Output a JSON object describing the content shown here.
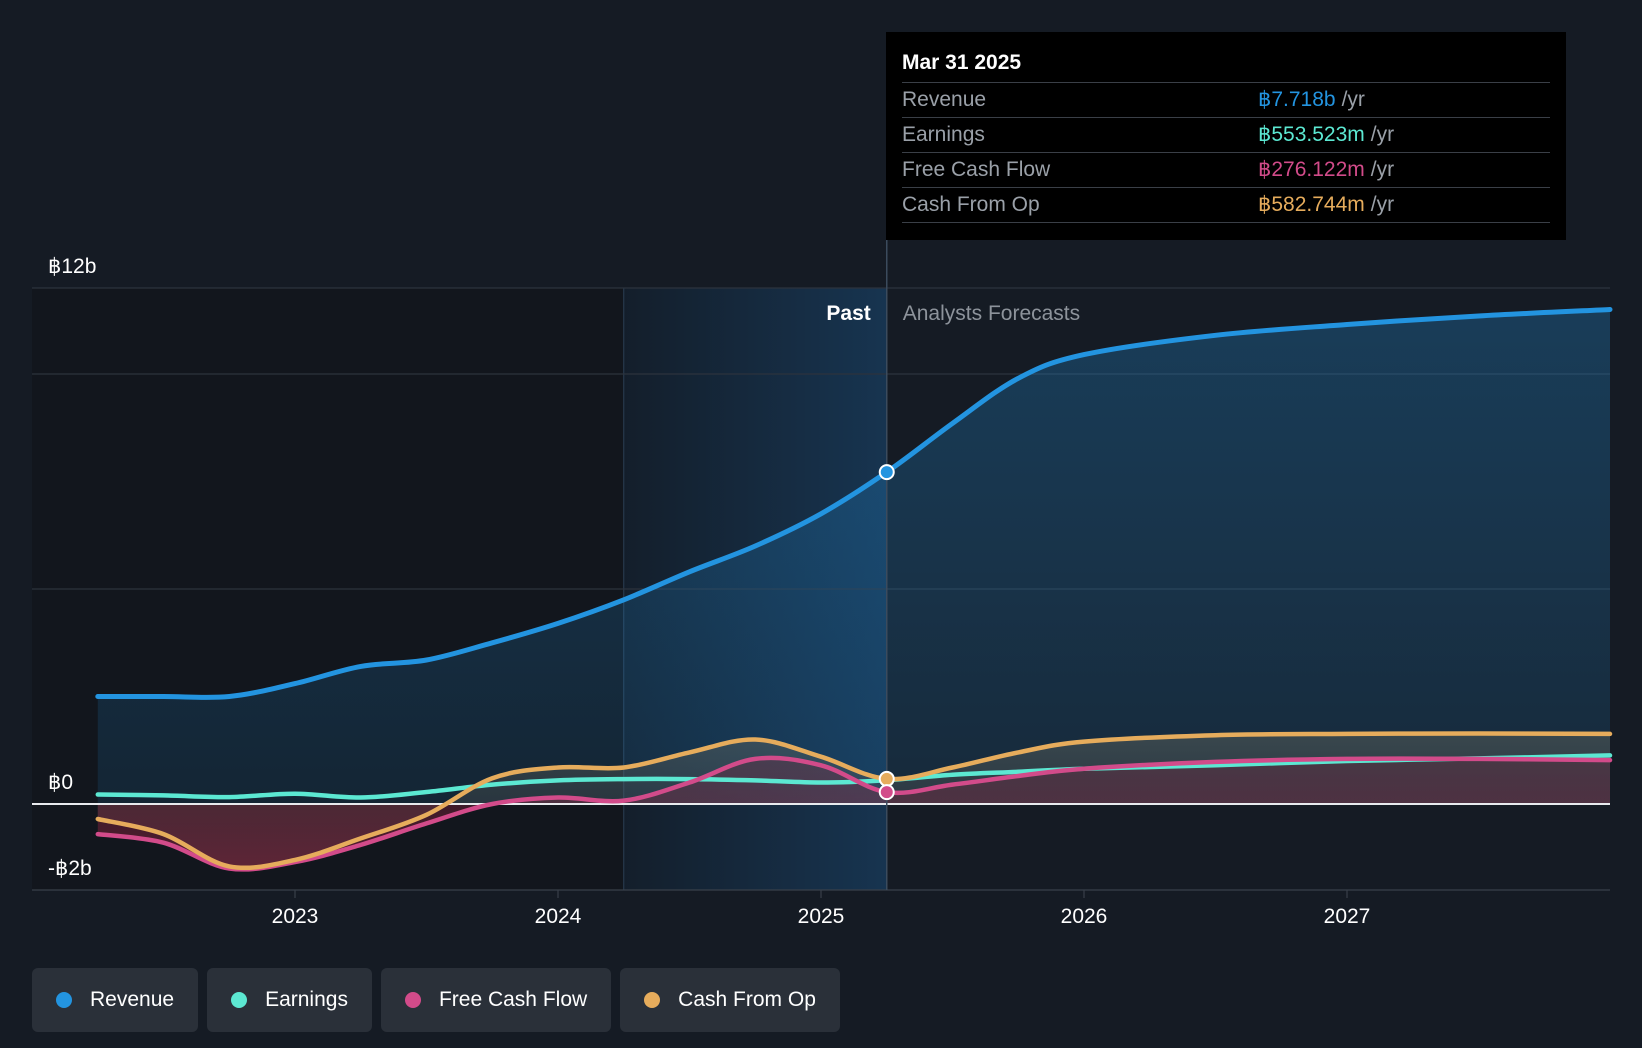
{
  "colors": {
    "revenue": "#2394e0",
    "earnings": "#5ce8d2",
    "fcf": "#d24b8a",
    "cfo": "#e6ac5c",
    "background": "#151b24"
  },
  "tooltip": {
    "date": "Mar 31 2025",
    "rows": [
      {
        "label": "Revenue",
        "value": "฿7.718b",
        "unit": "/yr"
      },
      {
        "label": "Earnings",
        "value": "฿553.523m",
        "unit": "/yr"
      },
      {
        "label": "Free Cash Flow",
        "value": "฿276.122m",
        "unit": "/yr"
      },
      {
        "label": "Cash From Op",
        "value": "฿582.744m",
        "unit": "/yr"
      }
    ]
  },
  "legend": {
    "items": [
      {
        "label": "Revenue",
        "color": "#2394e0"
      },
      {
        "label": "Earnings",
        "color": "#5ce8d2"
      },
      {
        "label": "Free Cash Flow",
        "color": "#d24b8a"
      },
      {
        "label": "Cash From Op",
        "color": "#e6ac5c"
      }
    ]
  },
  "chart_data": {
    "type": "line",
    "title": "",
    "xlabel": "",
    "ylabel": "",
    "xlim": [
      2022.0,
      2028.0
    ],
    "ylim": [
      -2,
      12
    ],
    "y_tick_labels": [
      {
        "value": 12,
        "label": "฿12b"
      },
      {
        "value": 0,
        "label": "฿0"
      },
      {
        "value": -2,
        "label": "-฿2b"
      }
    ],
    "x_tick_labels": [
      {
        "value": 2023.0,
        "label": "2023"
      },
      {
        "value": 2024.0,
        "label": "2024"
      },
      {
        "value": 2025.0,
        "label": "2025"
      },
      {
        "value": 2026.0,
        "label": "2026"
      },
      {
        "value": 2027.0,
        "label": "2027"
      }
    ],
    "gridlines": [
      12,
      10,
      5
    ],
    "past_label": "Past",
    "forecast_label": "Analysts Forecasts",
    "divider_x": 2025.25,
    "highlight_start_x": 2024.25,
    "data_start_x": 2022.25,
    "series": [
      {
        "name": "Revenue",
        "key": "revenue",
        "x": [
          2022.25,
          2022.5,
          2022.75,
          2023.0,
          2023.25,
          2023.5,
          2023.75,
          2024.0,
          2024.25,
          2024.5,
          2024.75,
          2025.0,
          2025.25,
          2025.5,
          2025.75,
          2026.0,
          2026.5,
          2027.0,
          2027.5,
          2028.0
        ],
        "values": [
          2.5,
          2.5,
          2.5,
          2.8,
          3.2,
          3.35,
          3.75,
          4.2,
          4.75,
          5.4,
          6.0,
          6.75,
          7.718,
          8.85,
          9.9,
          10.45,
          10.9,
          11.15,
          11.35,
          11.5
        ]
      },
      {
        "name": "Earnings",
        "key": "earnings",
        "x": [
          2022.25,
          2022.5,
          2022.75,
          2023.0,
          2023.25,
          2023.5,
          2023.75,
          2024.0,
          2024.25,
          2024.5,
          2024.75,
          2025.0,
          2025.25,
          2025.5,
          2025.75,
          2026.0,
          2026.5,
          2027.0,
          2027.5,
          2028.0
        ],
        "values": [
          0.22,
          0.2,
          0.16,
          0.24,
          0.15,
          0.28,
          0.45,
          0.55,
          0.58,
          0.58,
          0.55,
          0.5,
          0.553,
          0.68,
          0.75,
          0.82,
          0.9,
          1.0,
          1.06,
          1.13
        ]
      },
      {
        "name": "Free Cash Flow",
        "key": "fcf",
        "x": [
          2022.25,
          2022.5,
          2022.75,
          2023.0,
          2023.25,
          2023.5,
          2023.75,
          2024.0,
          2024.25,
          2024.5,
          2024.75,
          2025.0,
          2025.25,
          2025.5,
          2025.75,
          2026.0,
          2026.5,
          2027.0,
          2027.5,
          2028.0
        ],
        "values": [
          -0.7,
          -0.9,
          -1.5,
          -1.35,
          -0.95,
          -0.45,
          0.0,
          0.15,
          0.08,
          0.5,
          1.05,
          0.9,
          0.276,
          0.45,
          0.65,
          0.82,
          0.98,
          1.05,
          1.05,
          1.02
        ]
      },
      {
        "name": "Cash From Op",
        "key": "cfo",
        "x": [
          2022.25,
          2022.5,
          2022.75,
          2023.0,
          2023.25,
          2023.5,
          2023.75,
          2024.0,
          2024.25,
          2024.5,
          2024.75,
          2025.0,
          2025.25,
          2025.5,
          2025.75,
          2026.0,
          2026.5,
          2027.0,
          2027.5,
          2028.0
        ],
        "values": [
          -0.35,
          -0.7,
          -1.45,
          -1.3,
          -0.8,
          -0.25,
          0.6,
          0.85,
          0.85,
          1.2,
          1.5,
          1.1,
          0.583,
          0.85,
          1.2,
          1.45,
          1.6,
          1.63,
          1.64,
          1.63
        ]
      }
    ]
  }
}
